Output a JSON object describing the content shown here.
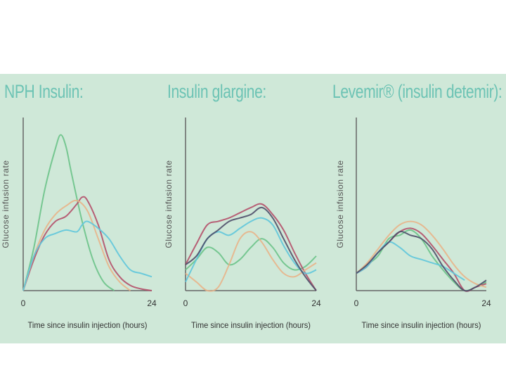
{
  "colors": {
    "background": "#cfe8d8",
    "title": "#6cc3b4",
    "axis": "#666666",
    "series": [
      "#6bc389",
      "#b4506a",
      "#e8b48a",
      "#5fc6dc",
      "#4f4f6a"
    ]
  },
  "chart_data": [
    {
      "type": "line",
      "title": "NPH Insulin:",
      "ylabel": "Glucose infusion rate",
      "xlabel": "Time since insulin injection (hours)",
      "xlim": [
        0,
        24
      ],
      "ylim": [
        0,
        100
      ],
      "xticks": [
        "0",
        "24"
      ],
      "grid": false,
      "series": [
        {
          "x": [
            0,
            2,
            4,
            6,
            7,
            8,
            9,
            11,
            13,
            15,
            17
          ],
          "values": [
            0,
            25,
            58,
            82,
            90,
            83,
            68,
            40,
            18,
            5,
            0
          ]
        },
        {
          "x": [
            0,
            2,
            4,
            6,
            8,
            10,
            11,
            12,
            14,
            16,
            18,
            20,
            22,
            24
          ],
          "values": [
            0,
            18,
            32,
            40,
            43,
            50,
            54,
            52,
            38,
            18,
            8,
            3,
            1,
            0
          ]
        },
        {
          "x": [
            0,
            2,
            4,
            6,
            8,
            10,
            12,
            14,
            16,
            18,
            20
          ],
          "values": [
            0,
            20,
            35,
            44,
            49,
            52,
            46,
            30,
            14,
            5,
            0
          ]
        },
        {
          "x": [
            0,
            2,
            4,
            6,
            8,
            10,
            11,
            12,
            14,
            16,
            18,
            20,
            22,
            24
          ],
          "values": [
            0,
            20,
            30,
            33,
            35,
            34,
            38,
            40,
            36,
            30,
            20,
            12,
            10,
            8
          ]
        }
      ]
    },
    {
      "type": "line",
      "title": "Insulin glargine:",
      "ylabel": "Glucose infusion rate",
      "xlabel": "Time since insulin injection (hours)",
      "xlim": [
        0,
        24
      ],
      "ylim": [
        0,
        100
      ],
      "xticks": [
        "0",
        "24"
      ],
      "grid": false,
      "series": [
        {
          "x": [
            0,
            2,
            4,
            6,
            8,
            10,
            12,
            14,
            16,
            18,
            20,
            22,
            24
          ],
          "values": [
            12,
            18,
            25,
            22,
            15,
            18,
            25,
            30,
            25,
            16,
            12,
            14,
            20
          ]
        },
        {
          "x": [
            0,
            2,
            4,
            6,
            8,
            10,
            12,
            14,
            16,
            18,
            20,
            22,
            24
          ],
          "values": [
            15,
            27,
            38,
            40,
            42,
            45,
            48,
            50,
            44,
            35,
            22,
            10,
            0
          ]
        },
        {
          "x": [
            0,
            2,
            4,
            6,
            8,
            10,
            12,
            14,
            16,
            18,
            20,
            22,
            24
          ],
          "values": [
            10,
            5,
            0,
            2,
            15,
            30,
            34,
            28,
            18,
            10,
            8,
            12,
            16
          ]
        },
        {
          "x": [
            0,
            2,
            4,
            6,
            8,
            10,
            12,
            14,
            16,
            18,
            20,
            22,
            24
          ],
          "values": [
            5,
            18,
            30,
            34,
            32,
            36,
            40,
            42,
            38,
            26,
            16,
            10,
            12
          ]
        },
        {
          "x": [
            0,
            2,
            4,
            6,
            8,
            10,
            12,
            14,
            16,
            18,
            20,
            22,
            24
          ],
          "values": [
            15,
            20,
            30,
            35,
            40,
            42,
            44,
            48,
            42,
            30,
            18,
            8,
            0
          ]
        }
      ]
    },
    {
      "type": "line",
      "title": "Levemir® (insulin detemir):",
      "ylabel": "Glucose infusion rate",
      "xlabel": "Time since insulin injection (hours)",
      "xlim": [
        0,
        24
      ],
      "ylim": [
        0,
        100
      ],
      "xticks": [
        "0",
        "24"
      ],
      "grid": false,
      "series": [
        {
          "x": [
            0,
            2,
            4,
            6,
            8,
            10,
            12,
            14,
            16,
            18,
            20,
            22,
            24
          ],
          "values": [
            10,
            15,
            20,
            30,
            32,
            35,
            30,
            20,
            12,
            5,
            0,
            2,
            5
          ]
        },
        {
          "x": [
            0,
            2,
            4,
            6,
            8,
            10,
            12,
            14,
            16,
            18,
            20,
            22,
            24
          ],
          "values": [
            10,
            14,
            22,
            28,
            34,
            36,
            33,
            26,
            18,
            10,
            0,
            2,
            4
          ]
        },
        {
          "x": [
            0,
            2,
            4,
            6,
            8,
            10,
            12,
            14,
            16,
            18,
            20,
            22,
            24
          ],
          "values": [
            10,
            16,
            24,
            32,
            38,
            40,
            38,
            32,
            24,
            15,
            8,
            4,
            2
          ]
        },
        {
          "x": [
            0,
            2,
            4,
            6,
            8,
            10,
            12,
            14,
            16,
            18,
            20
          ],
          "values": [
            10,
            14,
            22,
            28,
            25,
            20,
            18,
            16,
            14,
            10,
            6
          ]
        },
        {
          "x": [
            0,
            2,
            4,
            6,
            8,
            10,
            12,
            14,
            16,
            18,
            20,
            22,
            24
          ],
          "values": [
            10,
            15,
            22,
            28,
            34,
            32,
            30,
            24,
            14,
            6,
            0,
            2,
            6
          ]
        }
      ]
    }
  ]
}
